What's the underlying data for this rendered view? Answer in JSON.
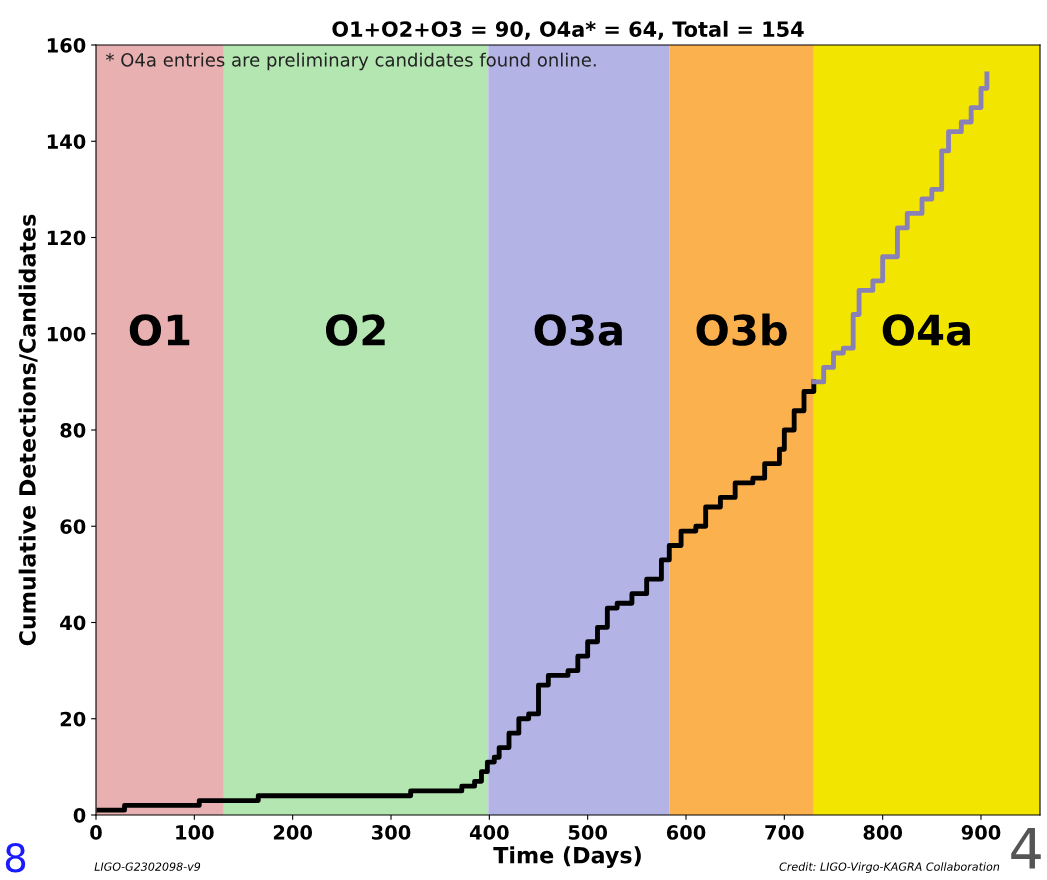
{
  "chart_data": {
    "type": "step",
    "title": "O1+O2+O3 = 90, O4a* = 64, Total = 154",
    "xlabel": "Time (Days)",
    "ylabel": "Cumulative Detections/Candidates",
    "series": [
      {
        "color": "#000000",
        "x": [
          3,
          29,
          105,
          165,
          320,
          372,
          385,
          392,
          398,
          405,
          410,
          420,
          430,
          440,
          450,
          460,
          480,
          490,
          500,
          510,
          520,
          530,
          545,
          560,
          575,
          583,
          595,
          610,
          620,
          635,
          650,
          668,
          680,
          695,
          700,
          710,
          720,
          730
        ],
        "values": [
          1,
          2,
          3,
          4,
          5,
          6,
          7,
          9,
          11,
          12,
          14,
          17,
          20,
          21,
          27,
          29,
          30,
          33,
          36,
          39,
          43,
          44,
          46,
          49,
          53,
          56,
          59,
          60,
          64,
          66,
          69,
          70,
          73,
          76,
          80,
          84,
          88,
          90
        ]
      },
      {
        "color": "#8a80b8",
        "x": [
          730,
          740,
          750,
          760,
          770,
          776,
          790,
          800,
          815,
          825,
          840,
          850,
          860,
          867,
          880,
          890,
          900,
          906
        ],
        "values": [
          90,
          93,
          96,
          97,
          104,
          109,
          111,
          116,
          122,
          125,
          128,
          130,
          138,
          142,
          144,
          147,
          151,
          154
        ]
      }
    ],
    "bands": [
      {
        "axis": "x",
        "from": 0,
        "to": 130,
        "label": "O1",
        "color": "#e8b0b0"
      },
      {
        "axis": "x",
        "from": 130,
        "to": 399,
        "label": "O2",
        "color": "#b3e6b0"
      },
      {
        "axis": "x",
        "from": 399,
        "to": 583,
        "label": "O3a",
        "color": "#b3b3e6"
      },
      {
        "axis": "x",
        "from": 583,
        "to": 730,
        "label": "O3b",
        "color": "#fcb14f"
      },
      {
        "axis": "x",
        "from": 730,
        "to": 960,
        "label": "O4a",
        "color": "#f2e600"
      }
    ],
    "annotations": [
      "* O4a entries are preliminary candidates found online.",
      "LIGO-G2302098-v9",
      "Credit: LIGO-Virgo-KAGRA Collaboration",
      "8",
      "4"
    ],
    "xlim": [
      0,
      960
    ],
    "xticks": [
      0,
      100,
      200,
      300,
      400,
      500,
      600,
      700,
      800,
      900
    ],
    "ylim": [
      0,
      160
    ],
    "yticks": [
      0,
      20,
      40,
      60,
      80,
      100,
      120,
      140,
      160
    ],
    "grid": false,
    "legend": false
  }
}
